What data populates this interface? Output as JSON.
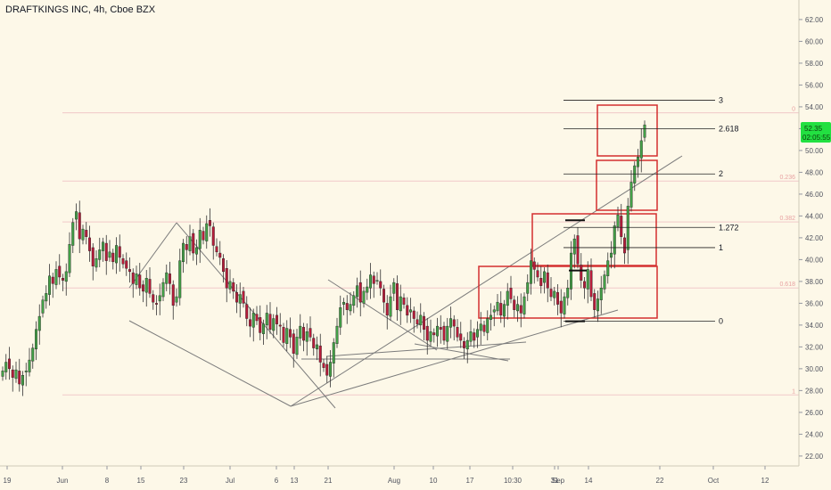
{
  "header": {
    "title": "DRAFTKINGS INC, 4h, Cboe BZX"
  },
  "colors": {
    "background": "#fdf8e8",
    "bull": "#43a047",
    "bear": "#b71c3a",
    "wick": "#333333",
    "box": "#d32f2f",
    "trendline": "#7c7c7c",
    "fib_line": "#222222",
    "faint_line": "#f1c9c9",
    "price_tag": "#22e041"
  },
  "price_tag": {
    "price": "52.35",
    "countdown": "02:05:55"
  },
  "fib_extension": [
    {
      "label": "0",
      "price": 34.35
    },
    {
      "label": "1",
      "price": 41.1
    },
    {
      "label": "1.272",
      "price": 42.95
    },
    {
      "label": "2",
      "price": 47.85
    },
    {
      "label": "2.618",
      "price": 52.0
    },
    {
      "label": "3",
      "price": 54.6
    }
  ],
  "fib_retracement": [
    {
      "label": "0",
      "price": 53.45
    },
    {
      "label": "0.236",
      "price": 47.2
    },
    {
      "label": "0.382",
      "price": 43.45
    },
    {
      "label": "0.618",
      "price": 37.4
    },
    {
      "label": "1",
      "price": 27.6
    }
  ],
  "chart_data": {
    "type": "candlestick",
    "x_ticks": [
      "19",
      "Jun",
      "8",
      "15",
      "23",
      "Jul",
      "6",
      "13",
      "21",
      "Aug",
      "10",
      "17",
      "10:30",
      "31",
      "Sep",
      "14",
      "22",
      "Oct",
      "12"
    ],
    "y_ticks": [
      "22.00",
      "24.00",
      "26.00",
      "28.00",
      "30.00",
      "32.00",
      "34.00",
      "36.00",
      "38.00",
      "40.00",
      "42.00",
      "44.00",
      "46.00",
      "48.00",
      "50.00",
      "52.00",
      "54.00",
      "56.00",
      "58.00",
      "60.00",
      "62.00"
    ],
    "ylim": [
      21.5,
      63.3
    ],
    "grid": false,
    "closes": [
      29.8,
      30.6,
      30.0,
      29.2,
      29.9,
      28.6,
      29.4,
      29.8,
      30.8,
      31.9,
      33.6,
      34.8,
      36.3,
      36.9,
      38.5,
      37.8,
      39.1,
      38.4,
      38.1,
      38.9,
      41.4,
      43.4,
      44.4,
      41.9,
      42.8,
      42.1,
      40.8,
      39.4,
      40.1,
      40.9,
      41.6,
      39.9,
      40.7,
      39.8,
      41.3,
      40.2,
      39.6,
      39.2,
      38.9,
      37.8,
      38.7,
      37.4,
      37.1,
      38.3,
      36.9,
      36.1,
      35.9,
      36.7,
      37.9,
      38.8,
      37.8,
      35.8,
      36.6,
      39.9,
      41.5,
      40.9,
      42.1,
      40.6,
      41.1,
      42.7,
      41.8,
      43.3,
      43.1,
      41.3,
      40.7,
      40.2,
      38.9,
      37.4,
      38.0,
      37.1,
      36.1,
      36.8,
      36.0,
      34.6,
      33.9,
      35.1,
      34.4,
      33.3,
      34.1,
      35.1,
      33.6,
      34.6,
      34.1,
      33.9,
      32.4,
      33.7,
      32.9,
      31.4,
      32.9,
      33.9,
      32.6,
      33.4,
      32.9,
      31.9,
      32.2,
      30.6,
      30.1,
      29.4,
      30.6,
      32.4,
      33.9,
      35.6,
      36.1,
      35.4,
      35.9,
      36.7,
      37.6,
      36.1,
      37.1,
      37.5,
      38.6,
      37.8,
      38.1,
      37.4,
      36.1,
      34.9,
      36.6,
      37.9,
      35.4,
      36.6,
      35.9,
      34.9,
      35.4,
      34.6,
      34.1,
      34.9,
      33.6,
      32.6,
      33.4,
      33.1,
      33.9,
      33.6,
      32.6,
      33.9,
      34.6,
      33.9,
      32.9,
      32.6,
      31.9,
      32.6,
      33.4,
      32.6,
      33.6,
      34.1,
      33.4,
      34.6,
      34.9,
      35.4,
      36.1,
      34.9,
      35.9,
      37.1,
      36.4,
      35.4,
      35.9,
      35.1,
      36.6,
      37.9,
      39.9,
      39.1,
      38.4,
      37.6,
      38.9,
      37.4,
      36.6,
      37.1,
      35.9,
      35.1,
      36.6,
      37.4,
      40.6,
      41.9,
      39.6,
      38.1,
      37.4,
      39.1,
      36.6,
      35.4,
      36.4,
      37.4,
      38.6,
      39.9,
      40.6,
      43.1,
      44.1,
      42.1,
      40.6,
      44.9,
      47.1,
      48.6,
      49.4,
      50.9,
      52.35
    ]
  }
}
